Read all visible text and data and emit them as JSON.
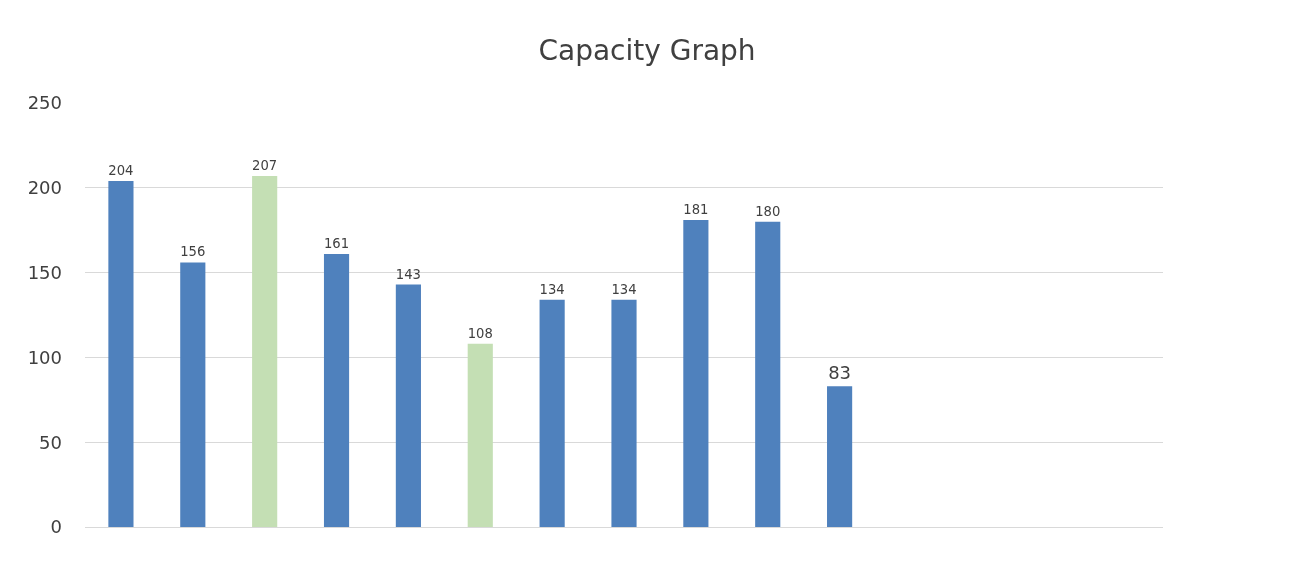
{
  "chart_data": {
    "type": "bar",
    "title": "Capacity Graph",
    "categories": [
      null,
      null,
      null,
      null,
      null,
      null,
      null,
      null,
      null,
      null,
      null,
      null,
      null,
      null,
      null
    ],
    "values": [
      204,
      156,
      207,
      161,
      143,
      108,
      134,
      134,
      181,
      180,
      83,
      null,
      null,
      null,
      null
    ],
    "colors": [
      "#4f81bd",
      "#4f81bd",
      "#c4dfb4",
      "#4f81bd",
      "#4f81bd",
      "#c4dfb4",
      "#4f81bd",
      "#4f81bd",
      "#4f81bd",
      "#4f81bd",
      "#4f81bd",
      "#4f81bd",
      "#4f81bd",
      "#4f81bd",
      "#4f81bd"
    ],
    "ylim": [
      0,
      250
    ],
    "yticks": [
      0,
      50,
      100,
      150,
      200,
      250
    ],
    "grid": "y",
    "data_labels": true
  }
}
